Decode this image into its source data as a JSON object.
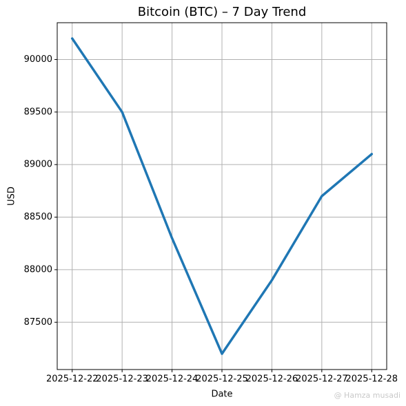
{
  "chart_data": {
    "type": "line",
    "title": "Bitcoin (BTC) – 7 Day Trend",
    "x_label": "Date",
    "y_label": "USD",
    "categories": [
      "2025-12-22",
      "2025-12-23",
      "2025-12-24",
      "2025-12-25",
      "2025-12-26",
      "2025-12-27",
      "2025-12-28"
    ],
    "series": [
      {
        "name": "BTC",
        "color": "#1f77b4",
        "values": [
          90200,
          89500,
          88300,
          87200,
          87900,
          88700,
          89100
        ]
      }
    ],
    "ylim": [
      87050,
      90350
    ],
    "yticks": [
      87500,
      88000,
      88500,
      89000,
      89500,
      90000
    ],
    "grid": true,
    "watermark": "@ Hamza musadi"
  }
}
